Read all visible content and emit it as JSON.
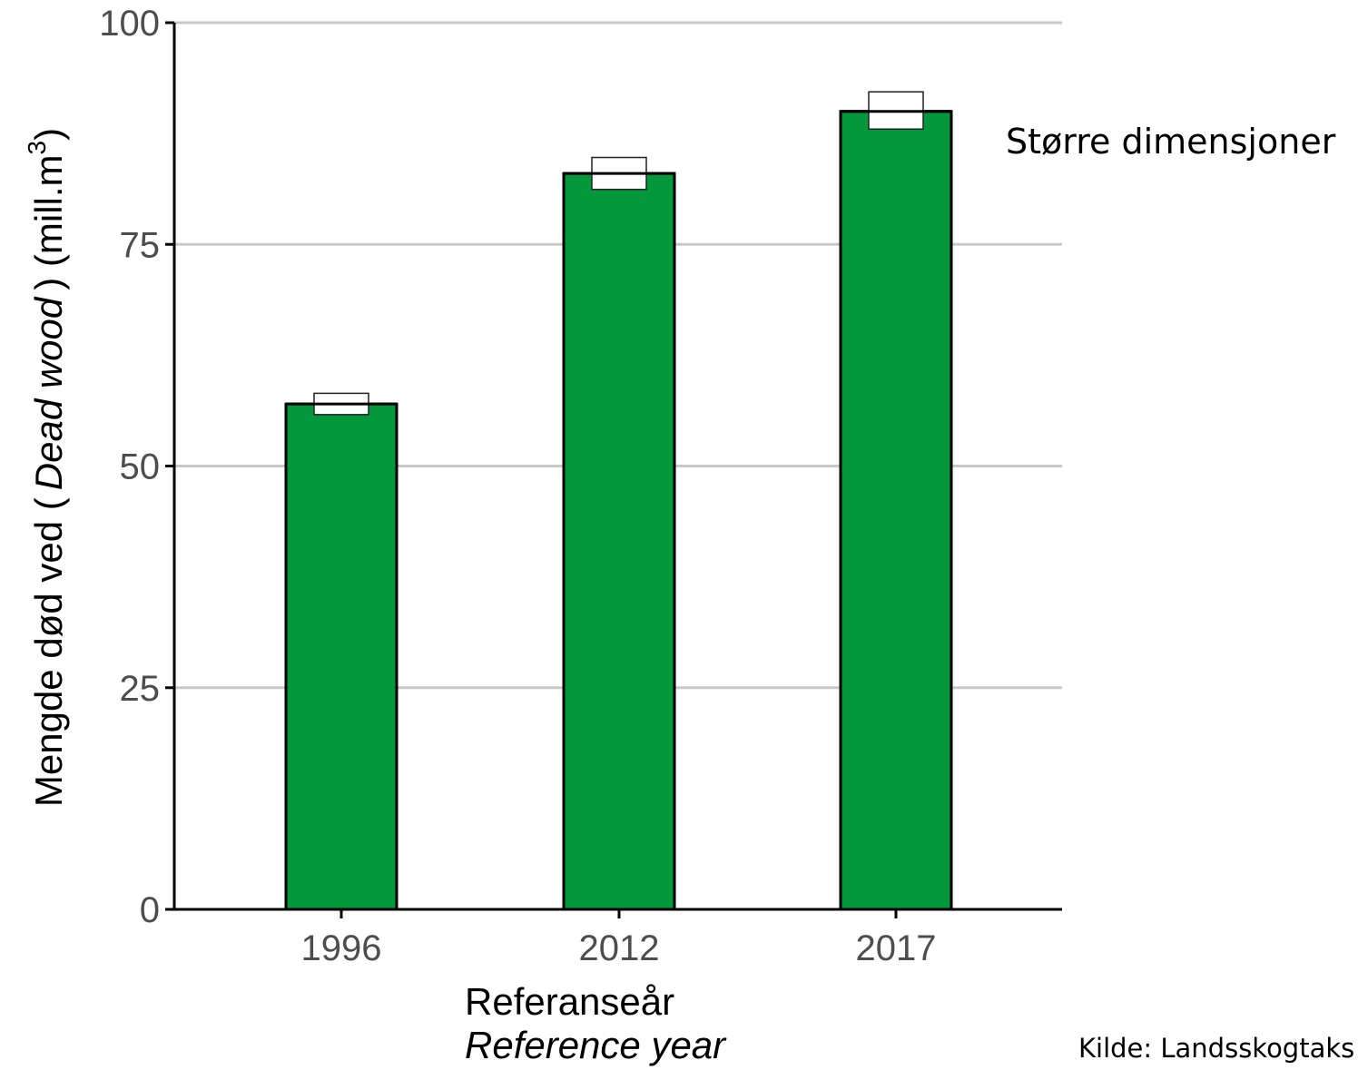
{
  "chart_data": {
    "type": "bar",
    "categories": [
      "1996",
      "2012",
      "2017"
    ],
    "values": [
      57,
      83,
      90
    ],
    "error_bars": [
      {
        "low": 55.8,
        "high": 58.2
      },
      {
        "low": 81.2,
        "high": 84.8
      },
      {
        "low": 88.0,
        "high": 92.2
      }
    ],
    "ylim": [
      0,
      100
    ],
    "yticks": [
      0,
      25,
      50,
      75,
      100
    ],
    "grid": true,
    "xlabel": "Referanseår",
    "xlabel_en": "Reference year",
    "ylabel_prefix": "Mengde død ved (",
    "ylabel_italic": "Dead wood",
    "ylabel_suffix": ") (mill.m",
    "ylabel_superscript": "3",
    "ylabel_close": ")",
    "annotation": "Større dimensjoner",
    "source": "Kilde: Landsskogtaks",
    "colors": {
      "bar_fill": "#00983a",
      "bar_stroke": "#000000",
      "grid": "#c8c8c8",
      "axis": "#000000",
      "tick_text": "#4d4d4d"
    }
  }
}
